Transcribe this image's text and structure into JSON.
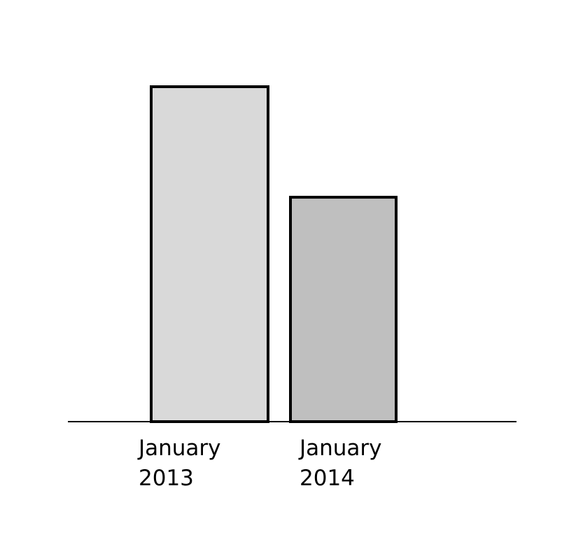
{
  "chart_data": {
    "type": "bar",
    "title": "",
    "xlabel": "",
    "ylabel": "",
    "categories": [
      [
        "January",
        "2013"
      ],
      [
        "January",
        "2014"
      ]
    ],
    "values": [
      100,
      67
    ],
    "ylim": [
      0,
      100
    ],
    "grid": false,
    "bar_colors": [
      "#d9d9d9",
      "#bfbfbf"
    ],
    "bar_outline_color": "#000000",
    "axis_color": "#000000"
  }
}
